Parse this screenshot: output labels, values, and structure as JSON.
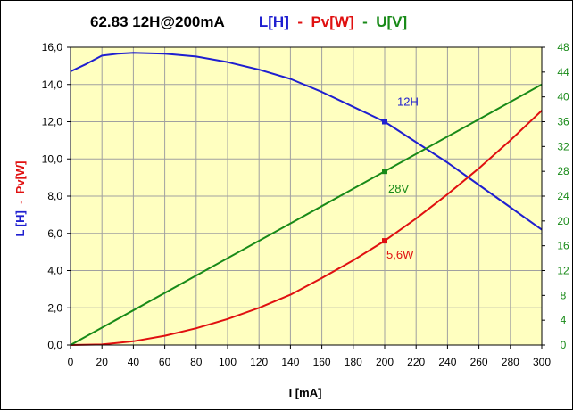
{
  "colors": {
    "plot_background": "#ffffc0",
    "grid": "#a0a0a0",
    "inductance": "#1f1fd0",
    "power": "#e01010",
    "voltage": "#188a18",
    "text": "#000000"
  },
  "chart_data": {
    "type": "line",
    "title": {
      "part_model": "62.83  12H@200mA",
      "part_L": "L[H]",
      "sep1": " - ",
      "part_Pv": "Pv[W]",
      "sep2": " - ",
      "part_U": "U[V]"
    },
    "xlabel": "I [mA]",
    "ylabel_left": {
      "part_L": "L [H]",
      "sep": " - ",
      "part_Pv": "Pv[W]"
    },
    "xlim": [
      0,
      300
    ],
    "ylim_left": [
      0,
      16
    ],
    "ylim_right": [
      0,
      48
    ],
    "grid": true,
    "x_ticks": [
      "0",
      "20",
      "40",
      "60",
      "80",
      "100",
      "120",
      "140",
      "160",
      "180",
      "200",
      "220",
      "240",
      "260",
      "280",
      "300"
    ],
    "y_left_ticks": [
      "0,0",
      "2,0",
      "4,0",
      "6,0",
      "8,0",
      "10,0",
      "12,0",
      "14,0",
      "16,0"
    ],
    "y_right_ticks": [
      "0",
      "4",
      "8",
      "12",
      "16",
      "20",
      "24",
      "28",
      "32",
      "36",
      "40",
      "44",
      "48"
    ],
    "series": [
      {
        "name": "L[H]",
        "axis": "left",
        "color": "#1f1fd0",
        "x": [
          0,
          10,
          20,
          30,
          40,
          60,
          80,
          100,
          120,
          140,
          160,
          180,
          200,
          220,
          240,
          260,
          280,
          300
        ],
        "y": [
          14.7,
          15.1,
          15.55,
          15.65,
          15.7,
          15.65,
          15.5,
          15.2,
          14.8,
          14.3,
          13.6,
          12.8,
          12.0,
          10.9,
          9.8,
          8.6,
          7.4,
          6.2
        ]
      },
      {
        "name": "Pv[W]",
        "axis": "left",
        "color": "#e01010",
        "x": [
          0,
          20,
          40,
          60,
          80,
          100,
          120,
          140,
          160,
          180,
          200,
          220,
          240,
          260,
          280,
          300
        ],
        "y": [
          0,
          0.03,
          0.2,
          0.5,
          0.9,
          1.4,
          2.0,
          2.7,
          3.6,
          4.55,
          5.6,
          6.8,
          8.1,
          9.5,
          11.0,
          12.6
        ]
      },
      {
        "name": "U[V]",
        "axis": "right",
        "color": "#188a18",
        "x": [
          0,
          300
        ],
        "y": [
          0,
          42
        ]
      }
    ],
    "annotations": [
      {
        "text": "12H",
        "x": 200,
        "y": 12.0,
        "axis": "left",
        "color": "#1f1fd0"
      },
      {
        "text": "28V",
        "x": 200,
        "y": 28,
        "axis": "right",
        "color": "#188a18"
      },
      {
        "text": "5,6W",
        "x": 200,
        "y": 5.6,
        "axis": "left",
        "color": "#e01010"
      }
    ]
  }
}
